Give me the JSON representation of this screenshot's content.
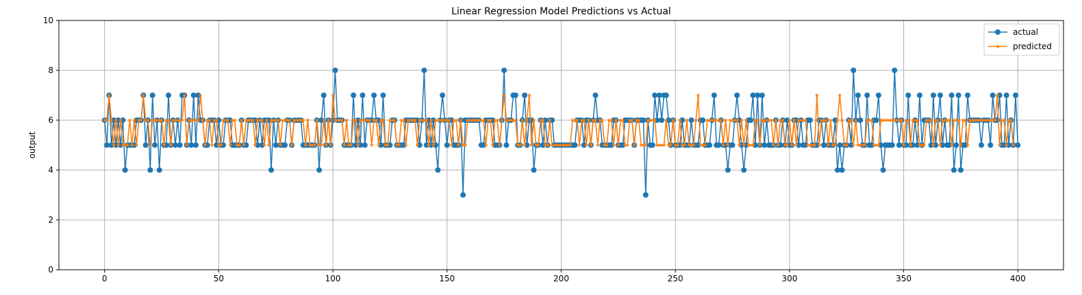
{
  "chart_data": {
    "type": "line",
    "title": "Linear Regression Model Predictions vs Actual",
    "xlabel": "",
    "ylabel": "output",
    "xlim": [
      -20,
      420
    ],
    "ylim": [
      0,
      10
    ],
    "xticks": [
      0,
      50,
      100,
      150,
      200,
      250,
      300,
      350,
      400
    ],
    "yticks": [
      0,
      2,
      4,
      6,
      8,
      10
    ],
    "grid": true,
    "legend_position": "top-right",
    "series": [
      {
        "name": "actual",
        "color": "#1f77b4",
        "marker": "circle",
        "values": [
          6,
          5,
          7,
          5,
          6,
          5,
          6,
          5,
          6,
          4,
          5,
          5,
          5,
          5,
          6,
          6,
          6,
          7,
          5,
          6,
          4,
          7,
          5,
          6,
          4,
          6,
          5,
          5,
          7,
          5,
          6,
          5,
          6,
          5,
          7,
          7,
          5,
          6,
          5,
          7,
          5,
          7,
          6,
          6,
          5,
          5,
          6,
          6,
          6,
          5,
          6,
          5,
          5,
          6,
          6,
          6,
          5,
          5,
          5,
          5,
          6,
          5,
          5,
          6,
          6,
          6,
          6,
          5,
          6,
          5,
          6,
          6,
          6,
          4,
          6,
          5,
          6,
          5,
          5,
          5,
          6,
          6,
          5,
          6,
          6,
          6,
          6,
          5,
          5,
          5,
          5,
          5,
          5,
          6,
          4,
          6,
          7,
          5,
          6,
          5,
          6,
          8,
          6,
          6,
          6,
          5,
          5,
          5,
          5,
          7,
          5,
          6,
          5,
          7,
          5,
          6,
          6,
          6,
          7,
          6,
          6,
          5,
          7,
          5,
          5,
          5,
          6,
          6,
          5,
          5,
          5,
          5,
          6,
          6,
          6,
          6,
          6,
          6,
          5,
          6,
          8,
          5,
          6,
          5,
          6,
          5,
          4,
          6,
          7,
          6,
          5,
          6,
          6,
          5,
          5,
          5,
          6,
          3,
          6,
          6,
          6,
          6,
          6,
          6,
          6,
          5,
          5,
          6,
          6,
          6,
          6,
          5,
          5,
          5,
          6,
          8,
          5,
          6,
          6,
          7,
          7,
          5,
          5,
          6,
          7,
          5,
          6,
          6,
          4,
          5,
          5,
          6,
          5,
          6,
          5,
          6,
          6,
          5,
          5,
          5,
          5,
          5,
          5,
          5,
          5,
          5,
          5,
          6,
          6,
          6,
          5,
          6,
          6,
          5,
          6,
          7,
          6,
          6,
          5,
          5,
          5,
          5,
          5,
          6,
          6,
          5,
          5,
          5,
          6,
          6,
          6,
          6,
          5,
          6,
          6,
          6,
          6,
          3,
          6,
          5,
          5,
          7,
          6,
          7,
          6,
          7,
          7,
          6,
          5,
          6,
          5,
          5,
          5,
          6,
          5,
          5,
          5,
          6,
          5,
          5,
          5,
          6,
          6,
          5,
          5,
          5,
          6,
          7,
          5,
          5,
          6,
          5,
          5,
          4,
          5,
          5,
          6,
          7,
          6,
          5,
          4,
          5,
          6,
          6,
          7,
          5,
          7,
          5,
          7,
          5,
          6,
          5,
          5,
          5,
          6,
          5,
          5,
          6,
          5,
          6,
          5,
          5,
          6,
          6,
          5,
          6,
          5,
          5,
          6,
          6,
          5,
          5,
          5,
          6,
          6,
          5,
          6,
          5,
          5,
          5,
          6,
          4,
          5,
          4,
          5,
          5,
          6,
          5,
          8,
          6,
          7,
          6,
          5,
          5,
          7,
          5,
          5,
          6,
          6,
          7,
          5,
          4,
          5,
          5,
          5,
          5,
          8,
          6,
          5,
          6,
          5,
          5,
          7,
          5,
          5,
          6,
          5,
          7,
          5,
          6,
          6,
          6,
          5,
          7,
          5,
          6,
          7,
          5,
          6,
          5,
          5,
          7,
          4,
          5,
          7,
          4,
          5,
          5,
          7,
          6,
          6,
          6,
          6,
          6,
          5,
          6,
          6,
          6,
          5,
          7,
          6,
          6,
          7,
          5,
          5,
          7,
          5,
          6,
          5,
          7,
          5
        ]
      },
      {
        "name": "predicted",
        "color": "#ff7f0e",
        "marker": "star",
        "values": [
          6,
          6,
          7,
          6,
          5,
          6,
          5,
          6,
          5,
          5,
          5,
          6,
          5,
          6,
          5,
          6,
          6,
          7,
          6,
          6,
          5,
          6,
          6,
          6,
          6,
          6,
          5,
          6,
          6,
          5,
          6,
          6,
          6,
          6,
          6,
          7,
          5,
          6,
          6,
          6,
          6,
          6,
          7,
          6,
          5,
          6,
          6,
          5,
          6,
          6,
          5,
          5,
          6,
          6,
          6,
          5,
          6,
          6,
          5,
          5,
          6,
          5,
          6,
          6,
          6,
          6,
          5,
          6,
          6,
          6,
          5,
          6,
          5,
          6,
          6,
          6,
          6,
          5,
          6,
          6,
          6,
          6,
          5,
          6,
          6,
          6,
          6,
          6,
          5,
          6,
          5,
          5,
          5,
          6,
          5,
          5,
          6,
          5,
          6,
          5,
          7,
          6,
          6,
          6,
          6,
          5,
          6,
          5,
          5,
          6,
          6,
          5,
          6,
          6,
          6,
          6,
          6,
          5,
          6,
          6,
          5,
          6,
          6,
          5,
          5,
          6,
          6,
          6,
          5,
          5,
          6,
          6,
          5,
          6,
          6,
          6,
          6,
          5,
          6,
          6,
          6,
          6,
          5,
          6,
          5,
          6,
          6,
          6,
          6,
          6,
          6,
          6,
          5,
          6,
          6,
          5,
          6,
          5,
          5,
          6,
          6,
          6,
          6,
          6,
          6,
          6,
          6,
          5,
          6,
          6,
          5,
          6,
          6,
          5,
          6,
          7,
          6,
          6,
          6,
          6,
          6,
          5,
          5,
          6,
          5,
          6,
          7,
          5,
          6,
          5,
          5,
          6,
          6,
          5,
          5,
          6,
          5,
          5,
          5,
          5,
          5,
          5,
          5,
          5,
          5,
          6,
          6,
          6,
          5,
          6,
          6,
          5,
          6,
          5,
          6,
          6,
          5,
          6,
          6,
          5,
          5,
          6,
          6,
          5,
          6,
          5,
          6,
          6,
          5,
          5,
          6,
          6,
          5,
          6,
          6,
          5,
          5,
          5,
          6,
          6,
          6,
          6,
          5,
          5,
          5,
          5,
          6,
          5,
          5,
          6,
          5,
          5,
          6,
          5,
          5,
          6,
          5,
          5,
          5,
          6,
          7,
          5,
          5,
          5,
          6,
          6,
          6,
          6,
          6,
          6,
          6,
          5,
          6,
          5,
          6,
          6,
          6,
          6,
          5,
          6,
          5,
          6,
          5,
          5,
          5,
          6,
          6,
          5,
          6,
          6,
          6,
          6,
          6,
          5,
          6,
          5,
          6,
          6,
          5,
          5,
          6,
          5,
          6,
          5,
          6,
          6,
          6,
          6,
          5,
          5,
          5,
          5,
          7,
          5,
          6,
          6,
          6,
          5,
          6,
          5,
          5,
          6,
          7,
          6,
          5,
          5,
          6,
          6,
          5,
          6,
          5,
          5,
          5,
          5,
          6,
          6,
          6,
          5,
          5,
          5,
          6,
          6,
          6,
          6,
          6,
          6,
          6,
          6,
          6,
          6,
          5,
          6,
          6,
          5,
          6,
          6,
          6,
          5,
          5,
          5,
          6,
          6,
          6,
          5,
          6,
          6,
          5,
          6,
          6,
          6,
          6,
          5,
          6,
          6,
          6,
          5,
          6,
          6,
          5,
          6,
          6,
          6,
          6,
          6,
          6,
          6,
          6,
          6,
          6,
          6,
          6,
          7,
          5,
          6,
          6,
          5,
          6,
          6,
          5
        ]
      }
    ]
  }
}
